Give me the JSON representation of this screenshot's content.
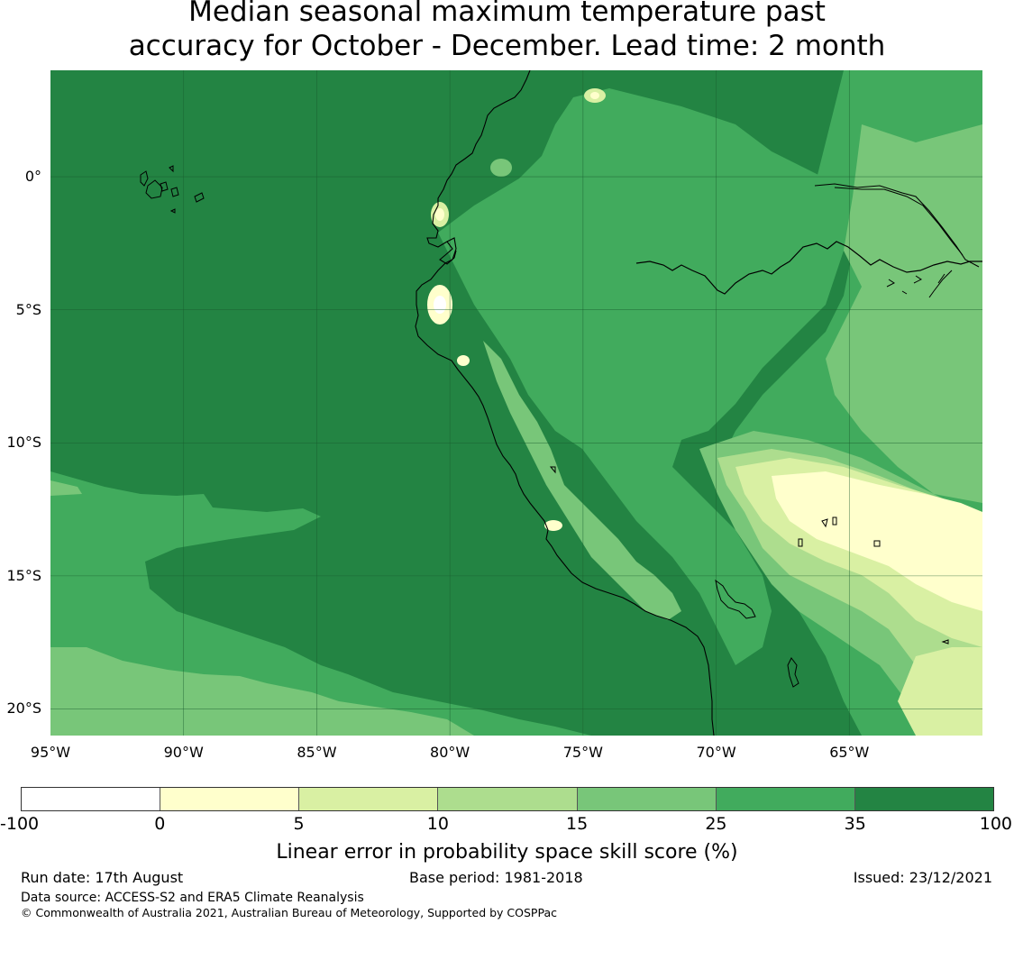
{
  "title": {
    "line1": "Median seasonal maximum temperature past",
    "line2": "accuracy for October - December. Lead time: 2 month"
  },
  "map": {
    "lon_range": [
      -95,
      -60
    ],
    "lat_range": [
      -21,
      4
    ],
    "lat_labels": [
      "0°",
      "5°S",
      "10°S",
      "15°S",
      "20°S"
    ],
    "lon_labels": [
      "95°W",
      "90°W",
      "85°W",
      "80°W",
      "75°W",
      "70°W",
      "65°W"
    ],
    "gridlines": true,
    "coastline_color": "#000000"
  },
  "colorbar": {
    "ticks": [
      "-100",
      "0",
      "5",
      "10",
      "15",
      "25",
      "35",
      "100"
    ],
    "colors": [
      "#ffffff",
      "#ffffcc",
      "#d9f0a3",
      "#addd8e",
      "#78c679",
      "#41ab5d",
      "#238443"
    ],
    "label": "Linear error in probability space skill score (%)"
  },
  "footer": {
    "run_date": "Run date: 17th August",
    "base_period": "Base period: 1981-2018",
    "issued": "Issued: 23/12/2021",
    "data_source": "Data source: ACCESS-S2 and ERA5 Climate Reanalysis",
    "copyright": "© Commonwealth of Australia 2021, Australian Bureau of Meteorology, Supported by COSPPac"
  }
}
